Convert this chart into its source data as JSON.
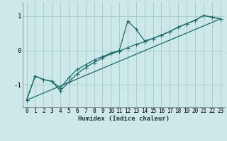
{
  "xlabel": "Humidex (Indice chaleur)",
  "background_color": "#cce8e8",
  "grid_color": "#aacccc",
  "line_color": "#1a6b6b",
  "xlim": [
    -0.5,
    23.5
  ],
  "ylim": [
    -1.65,
    1.4
  ],
  "yticks": [
    -1,
    0,
    1
  ],
  "xticks": [
    0,
    1,
    2,
    3,
    4,
    5,
    6,
    7,
    8,
    9,
    10,
    11,
    12,
    13,
    14,
    15,
    16,
    17,
    18,
    19,
    20,
    21,
    22,
    23
  ],
  "line1_x": [
    0,
    1,
    2,
    3,
    4,
    5,
    6,
    7,
    8,
    9,
    10,
    11,
    12,
    13,
    14,
    15,
    16,
    17,
    18,
    19,
    20,
    21,
    22,
    23
  ],
  "line1_y": [
    -1.45,
    -0.75,
    -0.85,
    -0.9,
    -1.1,
    -0.8,
    -0.55,
    -0.42,
    -0.28,
    -0.18,
    -0.08,
    0.0,
    0.85,
    0.62,
    0.28,
    0.35,
    0.45,
    0.55,
    0.68,
    0.78,
    0.88,
    1.02,
    0.97,
    0.92
  ],
  "line2_x": [
    0,
    1,
    2,
    3,
    4,
    5,
    6,
    7,
    8,
    9,
    10,
    11,
    12,
    13,
    14,
    15,
    16,
    17,
    18,
    19,
    20,
    21,
    22,
    23
  ],
  "line2_y": [
    -1.45,
    -0.75,
    -0.85,
    -0.9,
    -1.18,
    -0.92,
    -0.68,
    -0.5,
    -0.35,
    -0.22,
    -0.1,
    -0.02,
    0.08,
    0.18,
    0.25,
    0.35,
    0.45,
    0.55,
    0.68,
    0.78,
    0.88,
    1.02,
    0.97,
    0.92
  ],
  "line3_x": [
    0,
    23
  ],
  "line3_y": [
    -1.45,
    0.92
  ],
  "tick_fontsize": 5.5,
  "xlabel_fontsize": 6.5,
  "marker_size": 2.0,
  "line_width": 0.9
}
